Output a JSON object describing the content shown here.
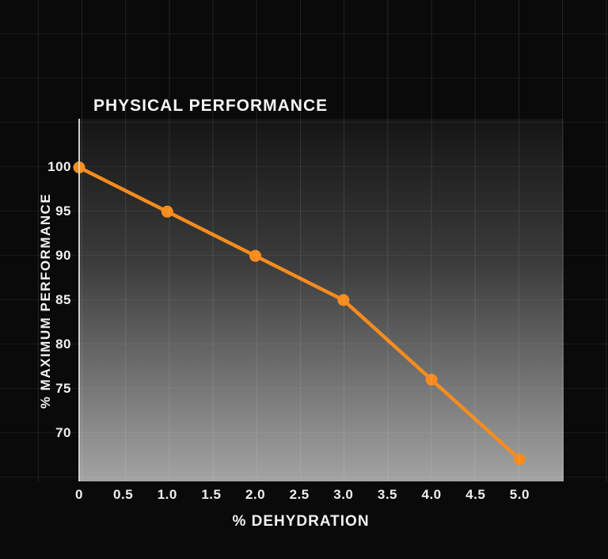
{
  "chart_data": {
    "type": "line",
    "title": "PHYSICAL PERFORMANCE",
    "xlabel": "% DEHYDRATION",
    "ylabel": "% MAXIMUM PERFORMANCE",
    "x": [
      0,
      1.0,
      2.0,
      3.0,
      4.0,
      5.0
    ],
    "values": [
      100,
      95,
      90,
      85,
      76,
      67
    ],
    "x_ticks": [
      "0",
      "0.5",
      "1.0",
      "1.5",
      "2.0",
      "2.5",
      "3.0",
      "3.5",
      "4.0",
      "4.5",
      "5.0"
    ],
    "x_tick_values": [
      0,
      0.5,
      1.0,
      1.5,
      2.0,
      2.5,
      3.0,
      3.5,
      4.0,
      4.5,
      5.0
    ],
    "y_ticks": [
      "100",
      "95",
      "90",
      "85",
      "80",
      "75",
      "70"
    ],
    "y_tick_values": [
      100,
      95,
      90,
      85,
      80,
      75,
      70
    ],
    "xlim": [
      0,
      5.5
    ],
    "ylim": [
      64.5,
      105.5
    ],
    "grid": true,
    "legend": false,
    "line_color": "#f78c1e",
    "marker_color": "#f78c1e",
    "background_color": "#0a0a0a"
  }
}
